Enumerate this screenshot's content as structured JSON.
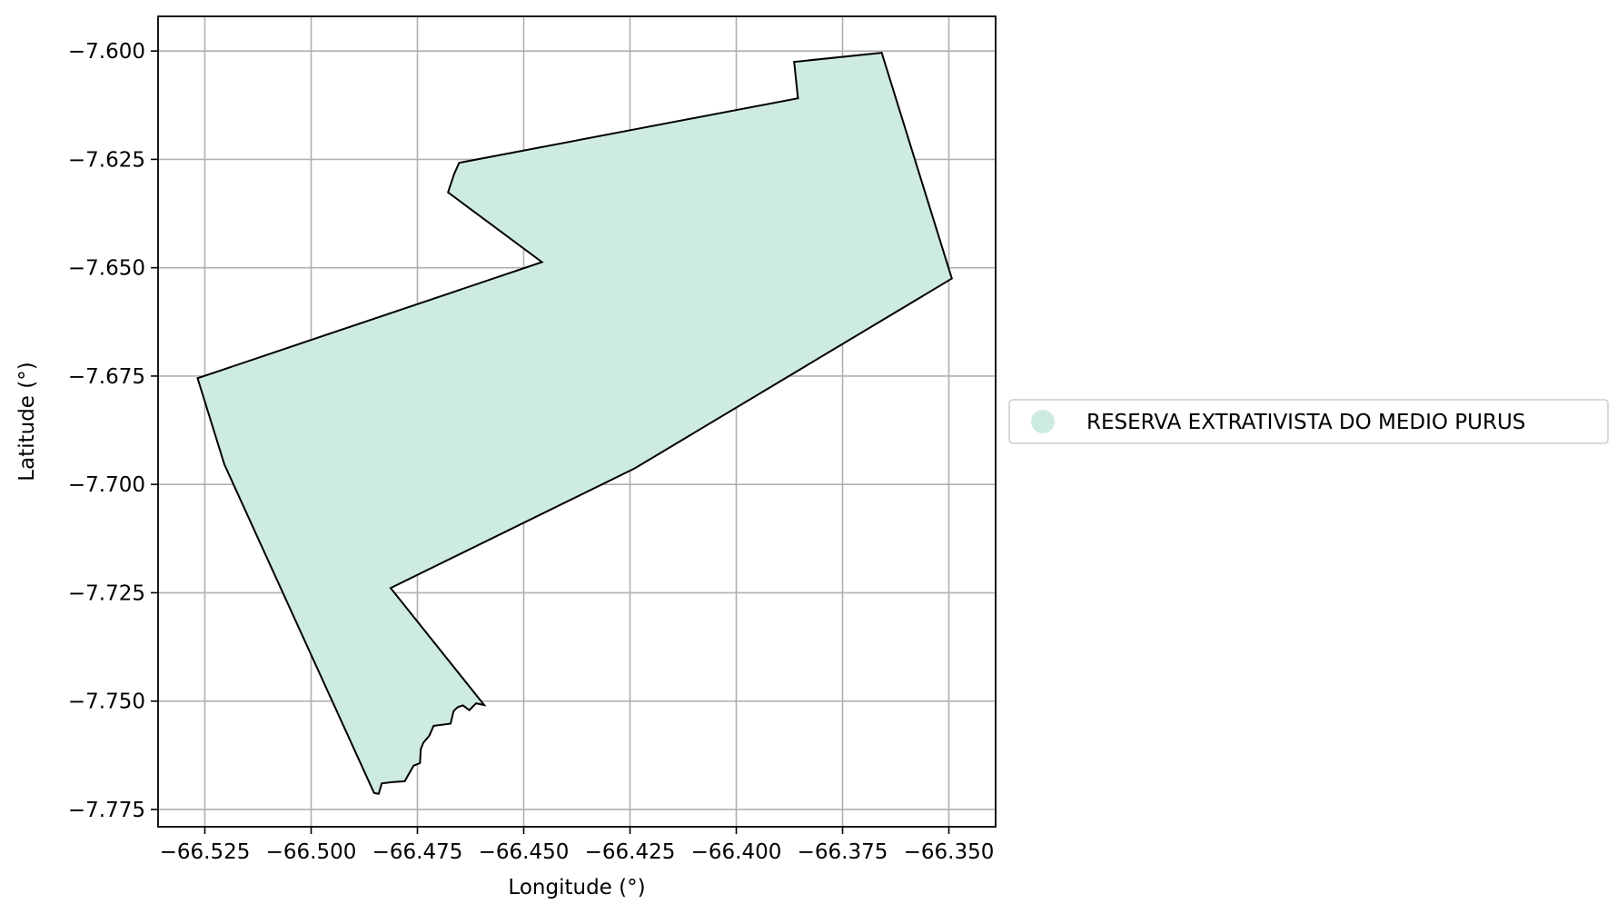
{
  "map": {
    "xlabel": "Longitude (°)",
    "ylabel": "Latitude (°)",
    "xlim": [
      -66.536,
      -66.339
    ],
    "ylim": [
      -7.779,
      -7.592
    ],
    "grid": true,
    "xticks": [
      {
        "value": -66.525,
        "label": "−66.525"
      },
      {
        "value": -66.5,
        "label": "−66.500"
      },
      {
        "value": -66.475,
        "label": "−66.475"
      },
      {
        "value": -66.45,
        "label": "−66.450"
      },
      {
        "value": -66.425,
        "label": "−66.425"
      },
      {
        "value": -66.4,
        "label": "−66.400"
      },
      {
        "value": -66.375,
        "label": "−66.375"
      },
      {
        "value": -66.35,
        "label": "−66.350"
      }
    ],
    "yticks": [
      {
        "value": -7.6,
        "label": "−7.600"
      },
      {
        "value": -7.625,
        "label": "−7.625"
      },
      {
        "value": -7.65,
        "label": "−7.650"
      },
      {
        "value": -7.675,
        "label": "−7.675"
      },
      {
        "value": -7.7,
        "label": "−7.700"
      },
      {
        "value": -7.725,
        "label": "−7.725"
      },
      {
        "value": -7.75,
        "label": "−7.750"
      },
      {
        "value": -7.775,
        "label": "−7.775"
      }
    ],
    "legend": {
      "placement": "center-right outside",
      "entries": [
        {
          "label": "RESERVA EXTRATIVISTA DO MEDIO PURUS",
          "color": "#ceebdf"
        }
      ]
    },
    "polygon": {
      "name": "RESERVA EXTRATIVISTA DO MEDIO PURUS",
      "fill": "#ceebdf",
      "stroke": "#000000",
      "coordinates": [
        [
          -66.3658,
          -7.6004
        ],
        [
          -66.3493,
          -7.6525
        ],
        [
          -66.4239,
          -7.6963
        ],
        [
          -66.4813,
          -7.7239
        ],
        [
          -66.4593,
          -7.7509
        ],
        [
          -66.4612,
          -7.7505
        ],
        [
          -66.4628,
          -7.7521
        ],
        [
          -66.4643,
          -7.751
        ],
        [
          -66.4655,
          -7.7514
        ],
        [
          -66.4665,
          -7.7523
        ],
        [
          -66.4672,
          -7.7552
        ],
        [
          -66.4712,
          -7.7557
        ],
        [
          -66.4722,
          -7.758
        ],
        [
          -66.4736,
          -7.7596
        ],
        [
          -66.4742,
          -7.7611
        ],
        [
          -66.4744,
          -7.7643
        ],
        [
          -66.4759,
          -7.7649
        ],
        [
          -66.478,
          -7.7685
        ],
        [
          -66.481,
          -7.7687
        ],
        [
          -66.4834,
          -7.769
        ],
        [
          -66.4841,
          -7.7714
        ],
        [
          -66.4852,
          -7.7712
        ],
        [
          -66.5204,
          -7.6954
        ],
        [
          -66.5267,
          -7.6755
        ],
        [
          -66.4457,
          -7.6487
        ],
        [
          -66.4678,
          -7.6326
        ],
        [
          -66.4664,
          -7.6285
        ],
        [
          -66.4652,
          -7.6258
        ],
        [
          -66.3855,
          -7.6109
        ],
        [
          -66.3864,
          -7.6025
        ]
      ]
    }
  }
}
